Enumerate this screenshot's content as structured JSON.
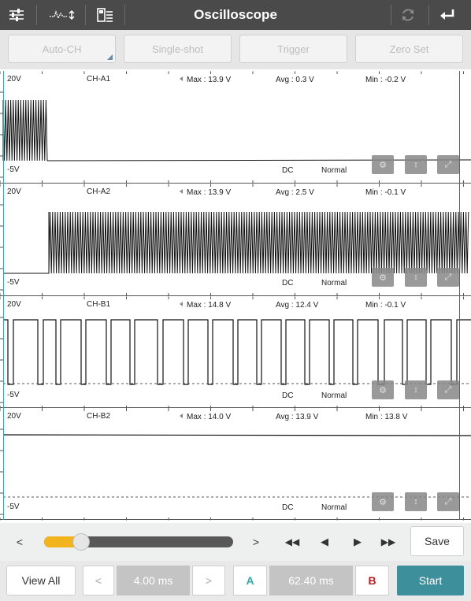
{
  "app": {
    "title": "Oscilloscope"
  },
  "icons": [
    "sliders-icon",
    "waveform-icon",
    "save-file-icon",
    "refresh-icon",
    "back-arrow-icon"
  ],
  "modes": [
    "Auto-CH",
    "Single-shot",
    "Trigger",
    "Zero Set"
  ],
  "channels": [
    {
      "vmax": "20V",
      "name": "CH-A1",
      "max": "Max : 13.9 V",
      "avg": "Avg : 0.3 V",
      "min": "Min : -0.2 V",
      "vmin": "-5V",
      "coupling": "DC",
      "mode": "Normal"
    },
    {
      "vmax": "20V",
      "name": "CH-A2",
      "max": "Max : 13.9 V",
      "avg": "Avg : 2.5 V",
      "min": "Min : -0.1 V",
      "vmin": "-5V",
      "coupling": "DC",
      "mode": "Normal"
    },
    {
      "vmax": "20V",
      "name": "CH-B1",
      "max": "Max : 14.8 V",
      "avg": "Avg : 12.4 V",
      "min": "Min : -0.1 V",
      "vmin": "-5V",
      "coupling": "DC",
      "mode": "Normal"
    },
    {
      "vmax": "20V",
      "name": "CH-B2",
      "max": "Max : 14.0 V",
      "avg": "Avg : 13.9 V",
      "min": "Min : 13.8 V",
      "vmin": "-5V",
      "coupling": "DC",
      "mode": "Normal"
    }
  ],
  "controls": {
    "left": "<",
    "right": ">",
    "slider_value": 0.18,
    "transport": [
      "◀◀",
      "◀",
      "▶",
      "▶▶"
    ],
    "save": "Save"
  },
  "bottom": {
    "view_all": "View All",
    "prev": "<",
    "timebase": "4.00 ms",
    "next": ">",
    "cursor_a": "A",
    "delta": "62.40 ms",
    "cursor_b": "B",
    "start": "Start"
  },
  "colors": {
    "topbar": "#4a4a4a",
    "start": "#3e8f9c",
    "slider": "#f2b31c",
    "cursor_a": "#3aa6a6",
    "cursor_b": "#b72020",
    "cursor_line": "#c0392b"
  }
}
